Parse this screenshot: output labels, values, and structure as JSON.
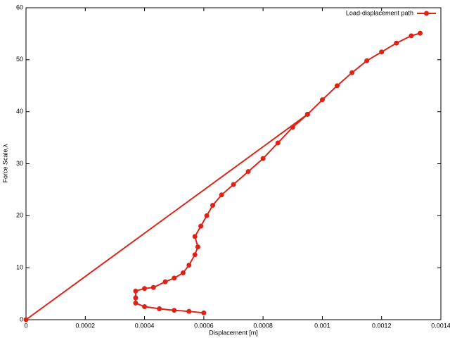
{
  "chart_data": {
    "type": "line",
    "x_label": "Displacement [m]",
    "y_label": "Force Scale,λ",
    "xlim": [
      0,
      0.0014
    ],
    "xticks": [
      0,
      0.0002,
      0.0004,
      0.0006,
      0.0008,
      0.001,
      0.0012,
      0.0014
    ],
    "ylim": [
      0,
      60
    ],
    "yticks": [
      0,
      10,
      20,
      30,
      40,
      50,
      60
    ],
    "legend": "top-right",
    "series": [
      {
        "name": "Load-displacement path",
        "color": "#dd2318",
        "x": [
          0,
          0.00095,
          null,
          0.0006,
          0.00055,
          0.0005,
          0.00045,
          0.0004,
          0.00037,
          0.00037,
          0.00037,
          0.0004,
          0.00043,
          0.00047,
          0.0005,
          0.00053,
          0.00055,
          0.00057,
          0.00058,
          0.00057,
          0.00059,
          0.00061,
          0.00063,
          0.00066,
          0.0007,
          0.00075,
          0.0008,
          0.00085,
          0.0009,
          0.00095,
          0.001,
          0.00105,
          0.0011,
          0.00115,
          0.0012,
          0.00125,
          0.0013,
          0.00133
        ],
        "values": [
          0,
          39.5,
          null,
          1.3,
          1.6,
          1.8,
          2.1,
          2.5,
          3.2,
          4.2,
          5.5,
          6.0,
          6.2,
          7.3,
          8.0,
          9.0,
          10.5,
          12.5,
          14,
          16,
          18,
          20,
          22,
          24,
          26,
          28.5,
          31,
          34,
          37,
          39.5,
          42.3,
          45,
          47.5,
          49.8,
          51.5,
          53.2,
          54.6,
          55.1
        ]
      }
    ]
  }
}
